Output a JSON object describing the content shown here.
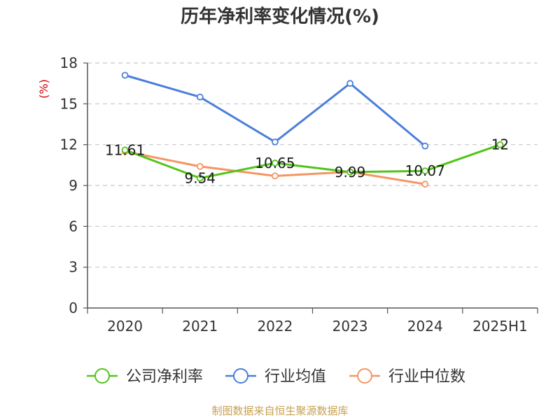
{
  "chart_data": {
    "type": "line",
    "title": "历年净利率变化情况(%)",
    "ylabel": "(%)",
    "xlabel": "",
    "categories": [
      "2020",
      "2021",
      "2022",
      "2023",
      "2024",
      "2025H1"
    ],
    "ylim": [
      0,
      18
    ],
    "yticks": [
      0,
      3,
      6,
      9,
      12,
      15,
      18
    ],
    "grid": true,
    "legend_position": "bottom",
    "series": [
      {
        "name": "公司净利率",
        "color": "#52c41a",
        "values": [
          11.61,
          9.54,
          10.65,
          9.99,
          10.07,
          12
        ],
        "labels": [
          "11.61",
          "9.54",
          "10.65",
          "9.99",
          "10.07",
          "12"
        ]
      },
      {
        "name": "行业均值",
        "color": "#4a7fd9",
        "values": [
          17.1,
          15.5,
          12.2,
          16.5,
          11.9,
          null
        ]
      },
      {
        "name": "行业中位数",
        "color": "#f59563",
        "values": [
          11.5,
          10.4,
          9.7,
          10.0,
          9.1,
          null
        ]
      }
    ]
  },
  "source_text": "制图数据来自恒生聚源数据库"
}
